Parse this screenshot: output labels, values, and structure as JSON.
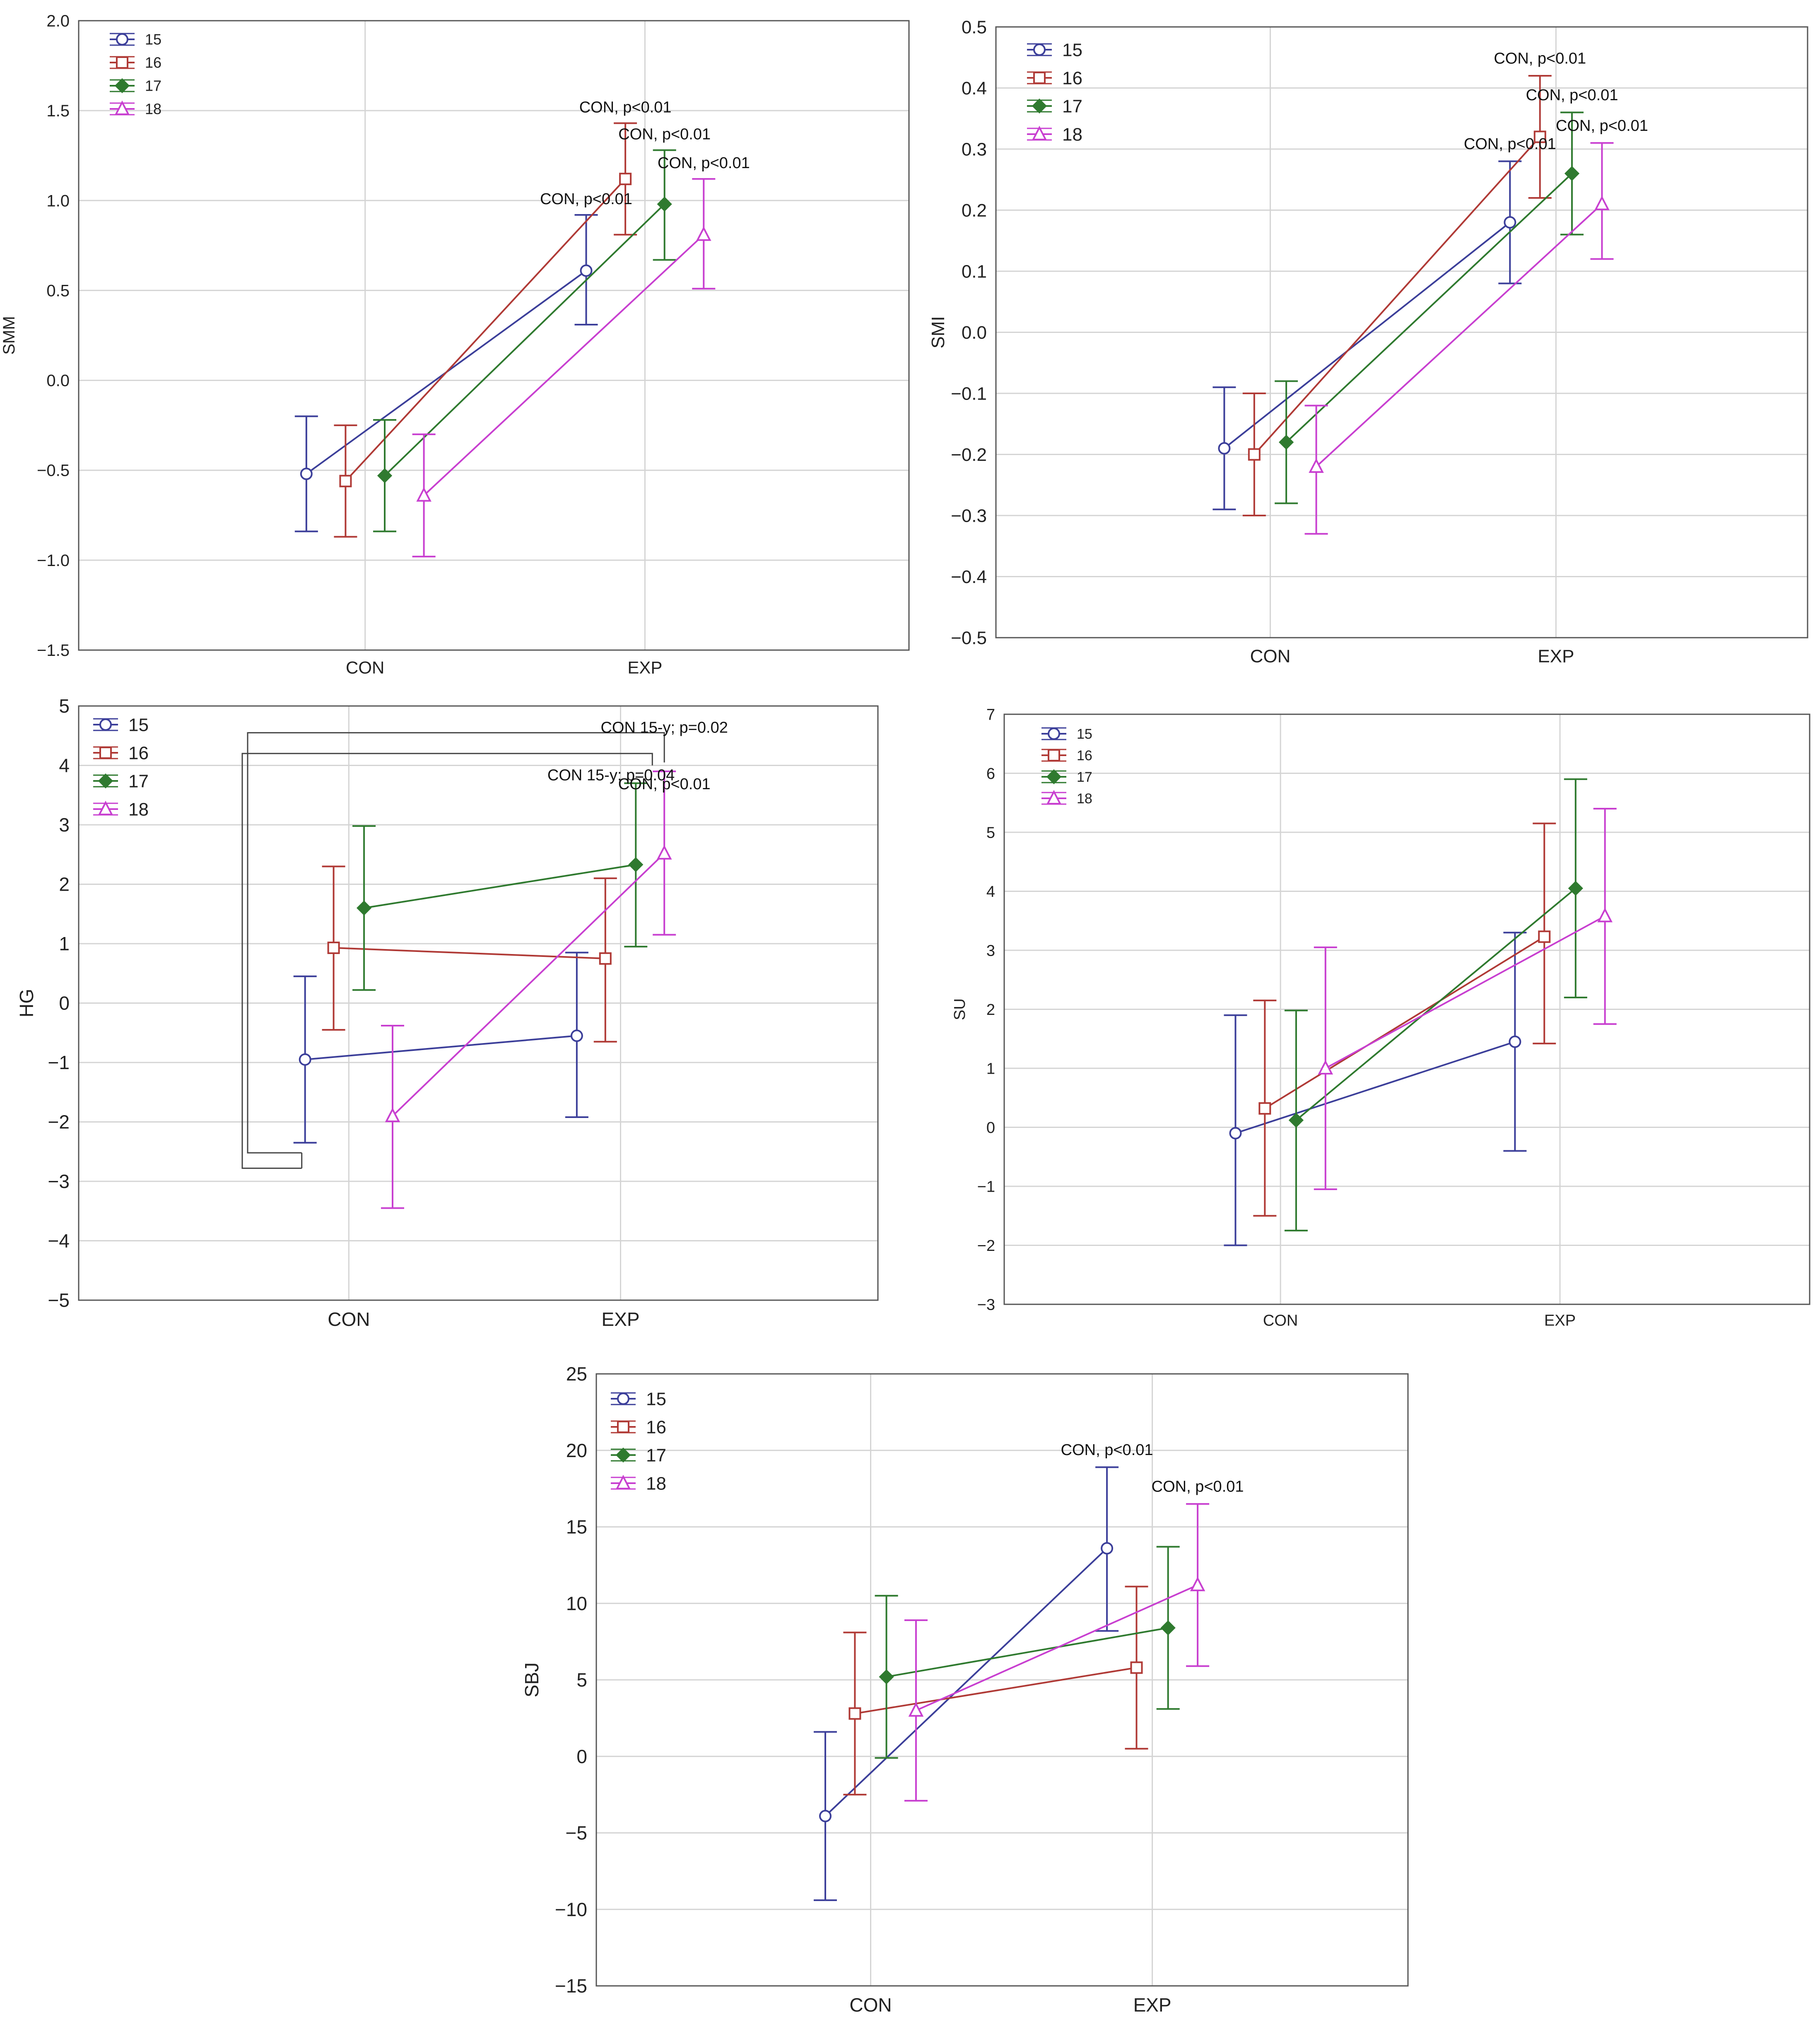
{
  "colors": {
    "15": "#3c3f9a",
    "16": "#b03a36",
    "17": "#2f7a2f",
    "18": "#c83fd0"
  },
  "chart_data": [
    {
      "type": "line",
      "ylabel": "SMM",
      "categories": [
        "CON",
        "EXP"
      ],
      "ylim": [
        -1.5,
        2.0
      ],
      "yticks": [
        -1.5,
        -1.0,
        -0.5,
        0.0,
        0.5,
        1.0,
        1.5,
        2.0
      ],
      "ytick_labels": [
        "−1.5",
        "−1.0",
        "−0.5",
        "0.0",
        "0.5",
        "1.0",
        "1.5",
        "2.0"
      ],
      "grid": true,
      "legend": "top-left",
      "series": [
        {
          "name": "15",
          "marker": "circle",
          "offset": -0.3,
          "mean": [
            -0.52,
            0.61
          ],
          "lower": [
            -0.84,
            0.31
          ],
          "upper": [
            -0.2,
            0.92
          ]
        },
        {
          "name": "16",
          "marker": "square",
          "offset": -0.1,
          "mean": [
            -0.56,
            1.12
          ],
          "lower": [
            -0.87,
            0.81
          ],
          "upper": [
            -0.25,
            1.43
          ]
        },
        {
          "name": "17",
          "marker": "diamond",
          "offset": 0.1,
          "mean": [
            -0.53,
            0.98
          ],
          "lower": [
            -0.84,
            0.67
          ],
          "upper": [
            -0.22,
            1.28
          ]
        },
        {
          "name": "18",
          "marker": "triangle",
          "offset": 0.3,
          "mean": [
            -0.64,
            0.81
          ],
          "lower": [
            -0.98,
            0.51
          ],
          "upper": [
            -0.3,
            1.12
          ]
        }
      ],
      "annotations": [
        {
          "text": "CON, p<0.01",
          "cat": 1,
          "offset": -0.3,
          "y": 0.98
        },
        {
          "text": "CON, p<0.01",
          "cat": 1,
          "offset": -0.1,
          "y": 1.49
        },
        {
          "text": "CON, p<0.01",
          "cat": 1,
          "offset": 0.1,
          "y": 1.34
        },
        {
          "text": "CON, p<0.01",
          "cat": 1,
          "offset": 0.3,
          "y": 1.18
        }
      ]
    },
    {
      "type": "line",
      "ylabel": "SMI",
      "categories": [
        "CON",
        "EXP"
      ],
      "ylim": [
        -0.5,
        0.5
      ],
      "yticks": [
        -0.5,
        -0.4,
        -0.3,
        -0.2,
        -0.1,
        0.0,
        0.1,
        0.2,
        0.3,
        0.4,
        0.5
      ],
      "ytick_labels": [
        "−0.5",
        "−0.4",
        "−0.3",
        "−0.2",
        "−0.1",
        "0.0",
        "0.1",
        "0.2",
        "0.3",
        "0.4",
        "0.5"
      ],
      "grid": true,
      "legend": "top-left",
      "series": [
        {
          "name": "15",
          "marker": "circle",
          "offset": -0.23,
          "mean": [
            -0.19,
            0.18
          ],
          "lower": [
            -0.29,
            0.08
          ],
          "upper": [
            -0.09,
            0.28
          ]
        },
        {
          "name": "16",
          "marker": "square",
          "offset": -0.08,
          "mean": [
            -0.2,
            0.32
          ],
          "lower": [
            -0.3,
            0.22
          ],
          "upper": [
            -0.1,
            0.42
          ]
        },
        {
          "name": "17",
          "marker": "diamond",
          "offset": 0.08,
          "mean": [
            -0.18,
            0.26
          ],
          "lower": [
            -0.28,
            0.16
          ],
          "upper": [
            -0.08,
            0.36
          ]
        },
        {
          "name": "18",
          "marker": "triangle",
          "offset": 0.23,
          "mean": [
            -0.22,
            0.21
          ],
          "lower": [
            -0.33,
            0.12
          ],
          "upper": [
            -0.12,
            0.31
          ]
        }
      ],
      "annotations": [
        {
          "text": "CON, p<0.01",
          "cat": 1,
          "offset": -0.23,
          "y": 0.3
        },
        {
          "text": "CON, p<0.01",
          "cat": 1,
          "offset": -0.08,
          "y": 0.44
        },
        {
          "text": "CON, p<0.01",
          "cat": 1,
          "offset": 0.08,
          "y": 0.38
        },
        {
          "text": "CON, p<0.01",
          "cat": 1,
          "offset": 0.23,
          "y": 0.33
        }
      ]
    },
    {
      "type": "line",
      "ylabel": "HG",
      "categories": [
        "CON",
        "EXP"
      ],
      "ylim": [
        -5,
        5
      ],
      "yticks": [
        -5,
        -4,
        -3,
        -2,
        -1,
        0,
        1,
        2,
        3,
        4,
        5
      ],
      "ytick_labels": [
        "−5",
        "−4",
        "−3",
        "−2",
        "−1",
        "0",
        "1",
        "2",
        "3",
        "4",
        "5"
      ],
      "grid": true,
      "legend": "top-left",
      "series": [
        {
          "name": "15",
          "marker": "circle",
          "offset": -0.23,
          "mean": [
            -0.95,
            -0.55
          ],
          "lower": [
            -2.35,
            -1.92
          ],
          "upper": [
            0.45,
            0.85
          ]
        },
        {
          "name": "16",
          "marker": "square",
          "offset": -0.08,
          "mean": [
            0.93,
            0.75
          ],
          "lower": [
            -0.45,
            -0.65
          ],
          "upper": [
            2.3,
            2.1
          ]
        },
        {
          "name": "17",
          "marker": "diamond",
          "offset": 0.08,
          "mean": [
            1.6,
            2.33
          ],
          "lower": [
            0.22,
            0.95
          ],
          "upper": [
            2.98,
            3.7
          ]
        },
        {
          "name": "18",
          "marker": "triangle",
          "offset": 0.23,
          "mean": [
            -1.9,
            2.52
          ],
          "lower": [
            -3.45,
            1.15
          ],
          "upper": [
            -0.38,
            3.9
          ]
        }
      ],
      "annotations": [
        {
          "text": "CON 15-y; p=0.02",
          "cat": 1,
          "offset": 0.23,
          "y": 4.55
        },
        {
          "text": "CON 15-y; p=0.04",
          "cat": 1,
          "offset": -0.05,
          "y": 3.75
        },
        {
          "text": "CON, p<0.01",
          "cat": 1,
          "offset": 0.23,
          "y": 3.6
        }
      ]
    },
    {
      "type": "line",
      "ylabel": "SU",
      "categories": [
        "CON",
        "EXP"
      ],
      "ylim": [
        -3,
        7
      ],
      "yticks": [
        -3,
        -2,
        -1,
        0,
        1,
        2,
        3,
        4,
        5,
        6,
        7
      ],
      "ytick_labels": [
        "−3",
        "−2",
        "−1",
        "0",
        "1",
        "2",
        "3",
        "4",
        "5",
        "6",
        "7"
      ],
      "grid": true,
      "legend": "top-left",
      "series": [
        {
          "name": "15",
          "marker": "circle",
          "offset": -0.23,
          "mean": [
            -0.1,
            1.45
          ],
          "lower": [
            -2.0,
            -0.4
          ],
          "upper": [
            1.9,
            3.3
          ]
        },
        {
          "name": "16",
          "marker": "square",
          "offset": -0.08,
          "mean": [
            0.32,
            3.23
          ],
          "lower": [
            -1.5,
            1.42
          ],
          "upper": [
            2.15,
            5.15
          ]
        },
        {
          "name": "17",
          "marker": "diamond",
          "offset": 0.08,
          "mean": [
            0.12,
            4.05
          ],
          "lower": [
            -1.75,
            2.2
          ],
          "upper": [
            1.98,
            5.9
          ]
        },
        {
          "name": "18",
          "marker": "triangle",
          "offset": 0.23,
          "mean": [
            1.0,
            3.58
          ],
          "lower": [
            -1.05,
            1.75
          ],
          "upper": [
            3.05,
            5.4
          ]
        }
      ],
      "annotations": []
    },
    {
      "type": "line",
      "ylabel": "SBJ",
      "categories": [
        "CON",
        "EXP"
      ],
      "ylim": [
        -15,
        25
      ],
      "yticks": [
        -15,
        -10,
        -5,
        0,
        5,
        10,
        15,
        20,
        25
      ],
      "ytick_labels": [
        "−15",
        "−10",
        "−5",
        "0",
        "5",
        "10",
        "15",
        "20",
        "25"
      ],
      "grid": true,
      "legend": "top-left",
      "series": [
        {
          "name": "15",
          "marker": "circle",
          "offset": -0.23,
          "mean": [
            -3.9,
            13.6
          ],
          "lower": [
            -9.4,
            8.2
          ],
          "upper": [
            1.6,
            18.9
          ]
        },
        {
          "name": "16",
          "marker": "square",
          "offset": -0.08,
          "mean": [
            2.8,
            5.8
          ],
          "lower": [
            -2.5,
            0.5
          ],
          "upper": [
            8.1,
            11.1
          ]
        },
        {
          "name": "17",
          "marker": "diamond",
          "offset": 0.08,
          "mean": [
            5.2,
            8.4
          ],
          "lower": [
            -0.1,
            3.1
          ],
          "upper": [
            10.5,
            13.7
          ]
        },
        {
          "name": "18",
          "marker": "triangle",
          "offset": 0.23,
          "mean": [
            3.0,
            11.2
          ],
          "lower": [
            -2.9,
            5.9
          ],
          "upper": [
            8.9,
            16.5
          ]
        }
      ],
      "annotations": [
        {
          "text": "CON, p<0.01",
          "cat": 1,
          "offset": -0.23,
          "y": 19.7
        },
        {
          "text": "CON, p<0.01",
          "cat": 1,
          "offset": 0.23,
          "y": 17.3
        }
      ]
    }
  ]
}
